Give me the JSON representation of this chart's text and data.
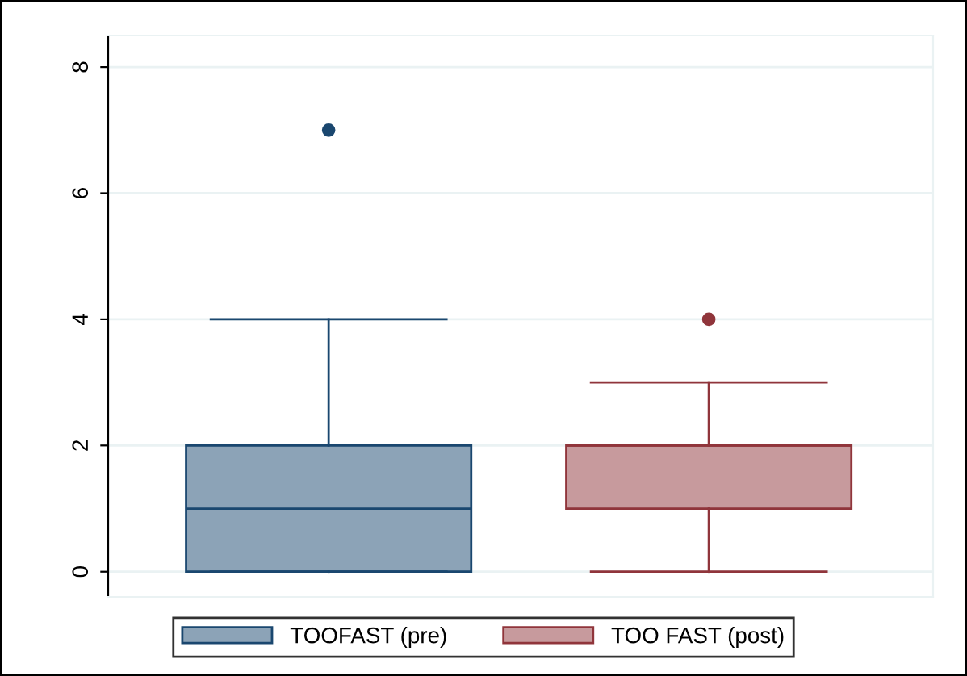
{
  "chart_data": {
    "type": "box",
    "categories": [
      null,
      null
    ],
    "series": [
      {
        "name": "TOOFAST (pre)",
        "color": "#1a476f",
        "boxes": [
          {
            "low": 0,
            "q1": 0,
            "median": 1,
            "q3": 2,
            "high": 4,
            "outliers": [
              7
            ]
          },
          null
        ]
      },
      {
        "name": "TOO FAST (post)",
        "color": "#90353b",
        "boxes": [
          null,
          {
            "low": 0,
            "q1": 1,
            "median": 2,
            "q3": 2,
            "high": 3,
            "outliers": [
              4
            ]
          }
        ]
      }
    ],
    "ylim": [
      -0.4,
      8.5
    ],
    "yticks": [
      0,
      2,
      4,
      6,
      8
    ],
    "grid": "y",
    "legend": "bottom",
    "tick_labels": "y"
  }
}
